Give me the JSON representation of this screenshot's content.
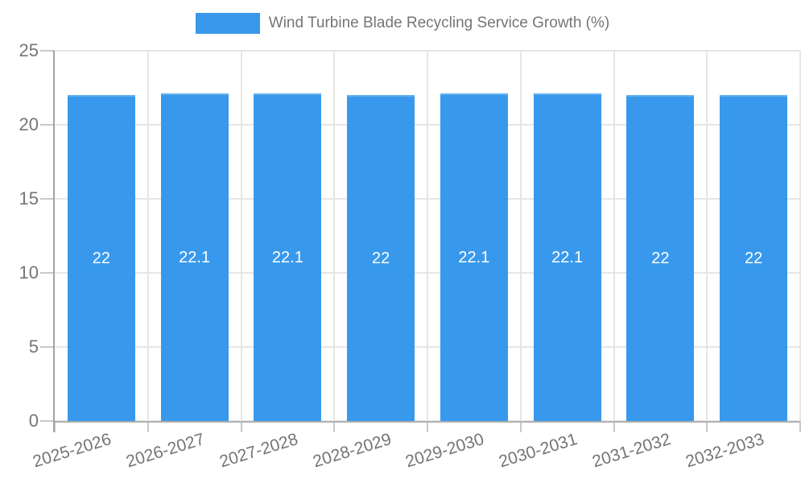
{
  "legend": {
    "label": "Wind Turbine Blade Recycling Service Growth (%)",
    "swatch_color": "#3899EC"
  },
  "chart_data": {
    "type": "bar",
    "title": "Wind Turbine Blade Recycling Service Growth (%)",
    "categories": [
      "2025-2026",
      "2026-2027",
      "2027-2028",
      "2028-2029",
      "2029-2030",
      "2030-2031",
      "2031-2032",
      "2032-2033"
    ],
    "values": [
      22,
      22.1,
      22.1,
      22,
      22.1,
      22.1,
      22,
      22
    ],
    "value_labels": [
      "22",
      "22.1",
      "22.1",
      "22",
      "22.1",
      "22.1",
      "22",
      "22"
    ],
    "xlabel": "",
    "ylabel": "",
    "ylim": [
      0,
      25
    ],
    "yticks": [
      0,
      5,
      10,
      15,
      20,
      25
    ],
    "grid": true,
    "legend_position": "top",
    "bar_color": "#3899EC",
    "value_label_color": "#ffffff",
    "axis_text_color": "#757575"
  }
}
